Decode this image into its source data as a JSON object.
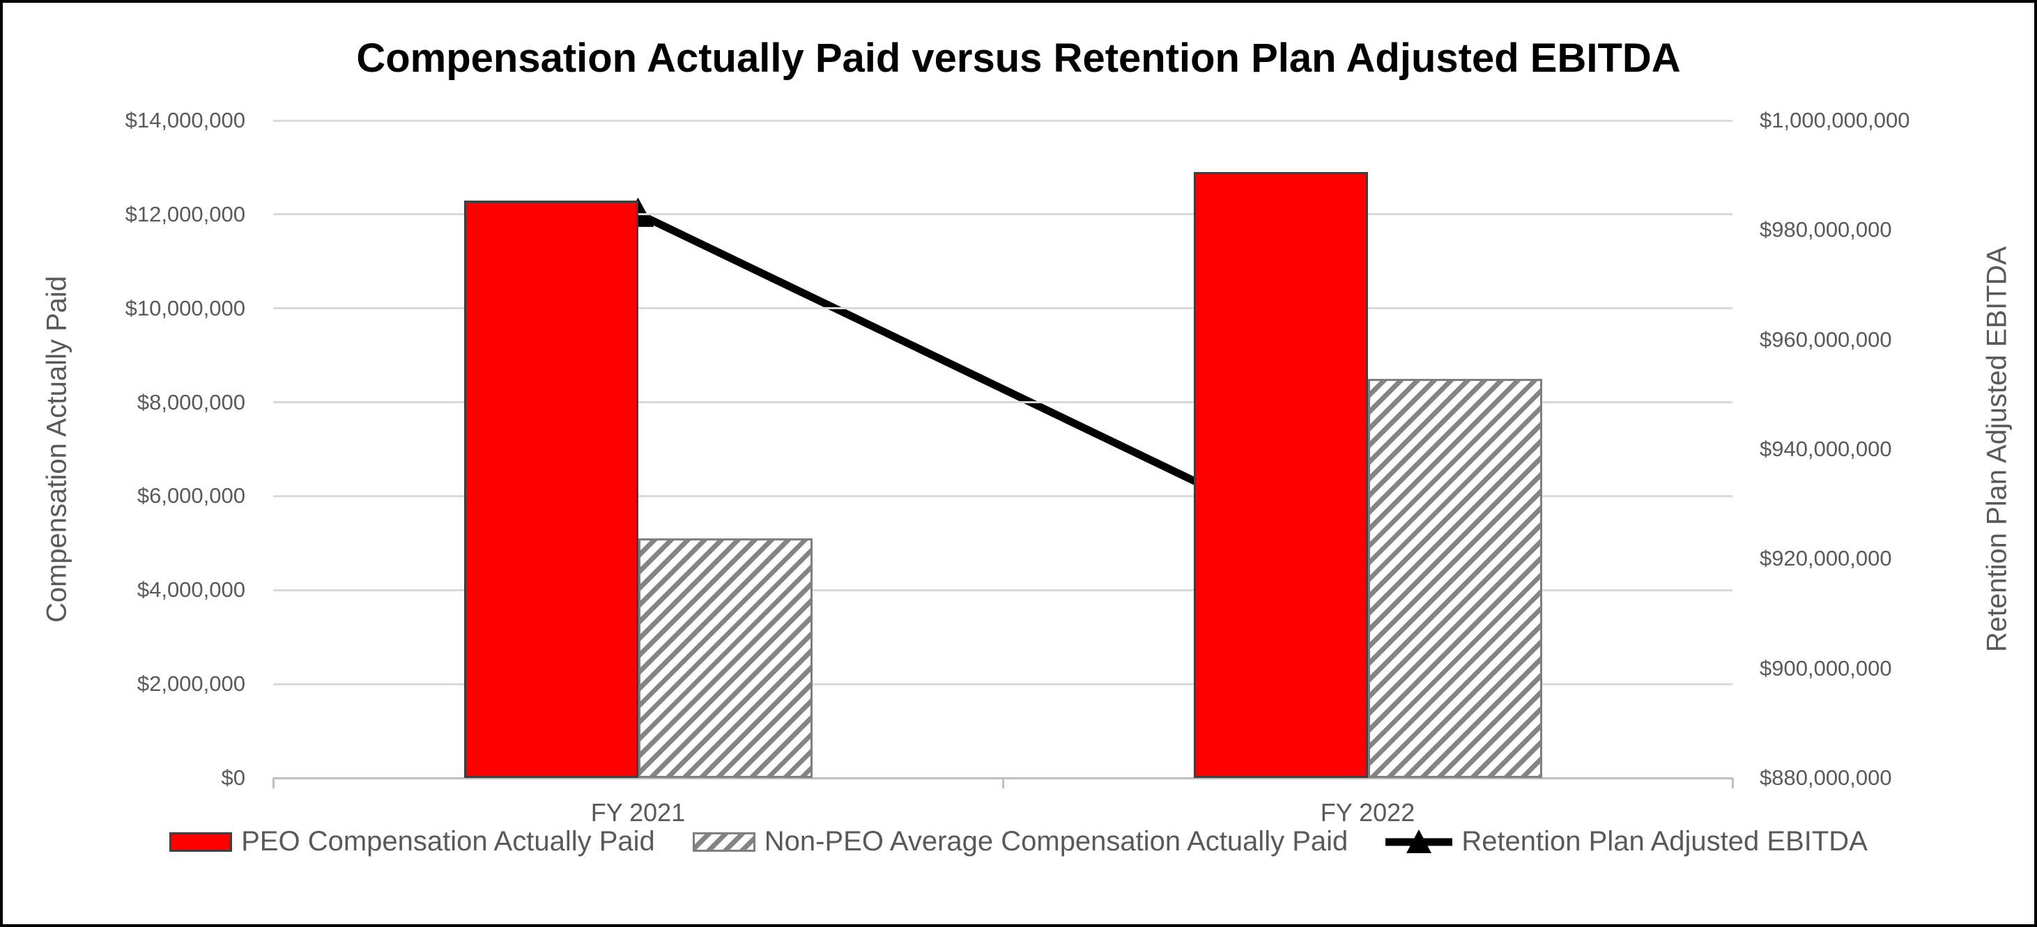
{
  "title": "Compensation Actually Paid versus Retention Plan Adjusted EBITDA",
  "chart_data": {
    "type": "combo-bar-line",
    "categories": [
      "FY 2021",
      "FY 2022"
    ],
    "series": [
      {
        "name": "PEO Compensation Actually Paid",
        "type": "bar",
        "axis": "left",
        "values": [
          12300000,
          12900000
        ],
        "fill": "#FF0000",
        "border": "#3F3F3F",
        "pattern": "solid"
      },
      {
        "name": "Non-PEO Average Compensation Actually Paid",
        "type": "bar",
        "axis": "left",
        "values": [
          5100000,
          8500000
        ],
        "fill": "#FFFFFF",
        "border": "#7F7F7F",
        "pattern": "diagonal-hatch",
        "hatch_color": "#848484"
      },
      {
        "name": "Retention Plan Adjusted EBITDA",
        "type": "line",
        "axis": "right",
        "values": [
          983000000,
          919000000
        ],
        "color": "#000000",
        "marker": "triangle-up"
      }
    ],
    "left_axis": {
      "title": "Compensation Actually Paid",
      "min": 0,
      "max": 14000000,
      "tick_labels": [
        "$0",
        "$2,000,000",
        "$4,000,000",
        "$6,000,000",
        "$8,000,000",
        "$10,000,000",
        "$12,000,000",
        "$14,000,000"
      ]
    },
    "right_axis": {
      "title": "Retention Plan Adjusted EBITDA",
      "min": 880000000,
      "max": 1000000000,
      "tick_labels": [
        "$880,000,000",
        "$900,000,000",
        "$920,000,000",
        "$940,000,000",
        "$960,000,000",
        "$980,000,000",
        "$1,000,000,000"
      ]
    },
    "grid": true,
    "legend_position": "bottom"
  },
  "colors": {
    "grid": "#D9D9D9",
    "axis_line": "#BFBFBF",
    "text": "#595959",
    "title_text": "#000000",
    "chart_border": "#000000",
    "background": "#FFFFFF"
  }
}
